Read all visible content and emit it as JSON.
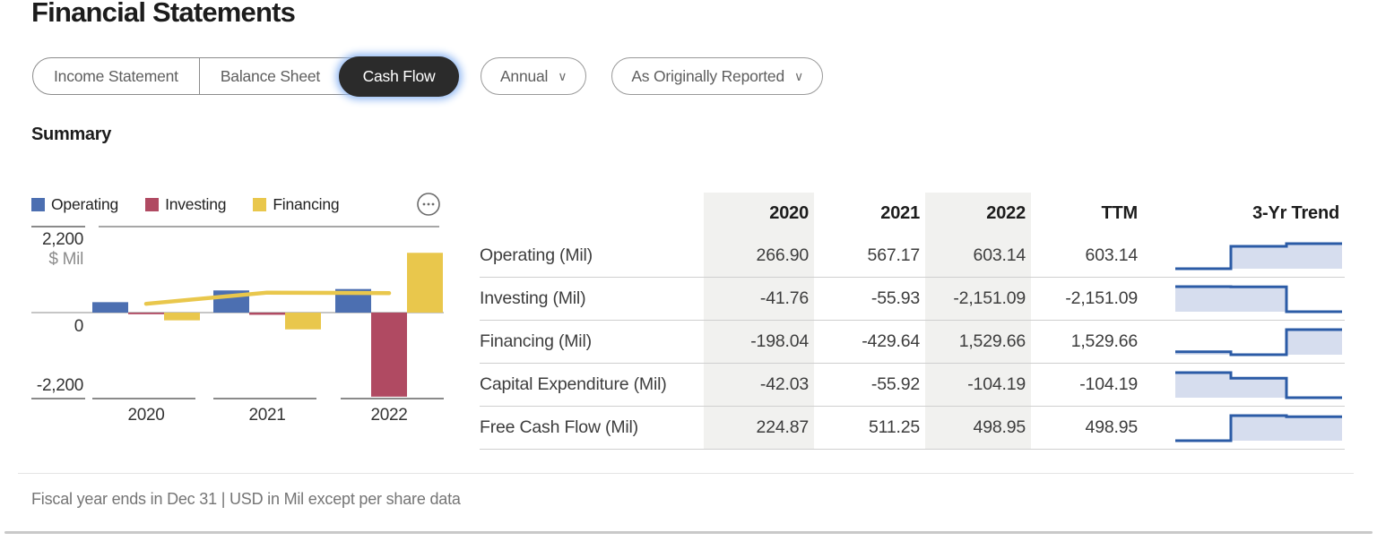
{
  "header": {
    "title": "Financial Statements"
  },
  "tabs": {
    "items": [
      {
        "label": "Income Statement",
        "selected": false
      },
      {
        "label": "Balance Sheet",
        "selected": false
      },
      {
        "label": "Cash Flow",
        "selected": true
      }
    ]
  },
  "filters": {
    "period": {
      "label": "Annual"
    },
    "reporting": {
      "label": "As Originally Reported"
    },
    "chevron_glyph": "∨"
  },
  "section": {
    "heading": "Summary"
  },
  "chart_data": {
    "type": "bar",
    "categories": [
      "2020",
      "2021",
      "2022"
    ],
    "series": [
      {
        "name": "Operating",
        "color": "#4C6FB1",
        "values": [
          266.9,
          567.17,
          603.14
        ]
      },
      {
        "name": "Investing",
        "color": "#B04A62",
        "values": [
          -41.76,
          -55.93,
          -2151.09
        ]
      },
      {
        "name": "Financing",
        "color": "#E9C74C",
        "values": [
          -198.04,
          -429.64,
          1529.66
        ]
      }
    ],
    "line_overlay": {
      "name": "Free Cash Flow",
      "color": "#E9C74C",
      "values": [
        224.87,
        511.25,
        498.95
      ]
    },
    "unit_label": "$ Mil",
    "ylim": [
      -2200,
      2200
    ],
    "yticks": [
      {
        "value": 2200,
        "label": "2,200"
      },
      {
        "value": 0,
        "label": "0"
      },
      {
        "value": -2200,
        "label": "-2,200"
      }
    ],
    "legend_position": "top",
    "grid": false
  },
  "table": {
    "columns": [
      "",
      "2020",
      "2021",
      "2022",
      "TTM",
      "3-Yr Trend"
    ],
    "shaded_columns": [
      "2020",
      "2022"
    ],
    "rows": [
      {
        "label": "Operating (Mil)",
        "values": [
          "266.90",
          "567.17",
          "603.14",
          "603.14"
        ],
        "trend": [
          266.9,
          567.17,
          603.14
        ]
      },
      {
        "label": "Investing (Mil)",
        "values": [
          "-41.76",
          "-55.93",
          "-2,151.09",
          "-2,151.09"
        ],
        "trend": [
          -41.76,
          -55.93,
          -2151.09
        ]
      },
      {
        "label": "Financing (Mil)",
        "values": [
          "-198.04",
          "-429.64",
          "1,529.66",
          "1,529.66"
        ],
        "trend": [
          -198.04,
          -429.64,
          1529.66
        ]
      },
      {
        "label": "Capital Expenditure (Mil)",
        "values": [
          "-42.03",
          "-55.92",
          "-104.19",
          "-104.19"
        ],
        "trend": [
          -42.03,
          -55.92,
          -104.19
        ]
      },
      {
        "label": "Free Cash Flow (Mil)",
        "values": [
          "224.87",
          "511.25",
          "498.95",
          "498.95"
        ],
        "trend": [
          224.87,
          511.25,
          498.95
        ]
      }
    ]
  },
  "footer": {
    "note": "Fiscal year ends in Dec 31 | USD in Mil except per share data"
  },
  "colors": {
    "accent_blue": "#4C6FB1",
    "accent_red": "#B04A62",
    "accent_yellow": "#E9C74C",
    "spark_line": "#2B5BA6",
    "spark_fill": "#D6DDEE",
    "selected_tab_bg": "#2B2B2B",
    "focus_glow": "#8FB7F3",
    "shaded_column_bg": "#F1F1EF",
    "axis_gray": "#8A8A8A"
  }
}
